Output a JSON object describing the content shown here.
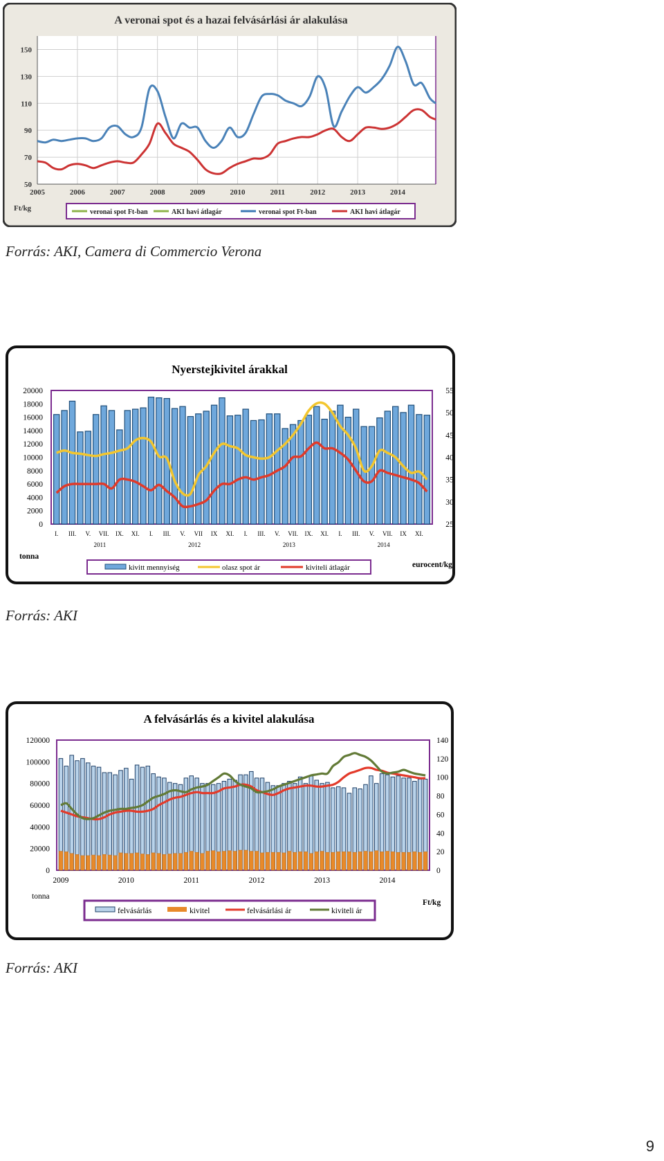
{
  "page_number": "9",
  "sources": [
    "Forrás: AKI, Camera di Commercio Verona",
    "Forrás: AKI",
    "Forrás: AKI"
  ],
  "chart_data": [
    {
      "type": "line",
      "title": "A veronai spot és a hazai felvásárlási ár alakulása",
      "ylabel": "Ft/kg",
      "ylim": [
        50,
        160
      ],
      "yticks": [
        50,
        70,
        90,
        110,
        130,
        150
      ],
      "year_labels": [
        "2005",
        "2006",
        "2007",
        "2008",
        "2009",
        "2010",
        "2011",
        "2012",
        "2013",
        "2014"
      ],
      "x_start": 2005.0,
      "x_end": 2014.95,
      "legend": [
        "veronai spot Ft-ban",
        "AKI havi átlagár",
        "veronai spot Ft-ban",
        "AKI havi átlagár"
      ],
      "legend_colors": [
        "#8db34a",
        "#8db34a",
        "#3b78b5",
        "#cc3333"
      ],
      "series": [
        {
          "name": "veronai spot Ft-ban",
          "color": "#4a82b8",
          "x": [
            2005.0,
            2005.2,
            2005.4,
            2005.6,
            2005.8,
            2006.0,
            2006.2,
            2006.4,
            2006.6,
            2006.8,
            2007.0,
            2007.2,
            2007.4,
            2007.6,
            2007.8,
            2008.0,
            2008.2,
            2008.4,
            2008.6,
            2008.8,
            2009.0,
            2009.2,
            2009.4,
            2009.6,
            2009.8,
            2010.0,
            2010.2,
            2010.4,
            2010.6,
            2010.8,
            2011.0,
            2011.2,
            2011.4,
            2011.6,
            2011.8,
            2012.0,
            2012.2,
            2012.4,
            2012.6,
            2012.8,
            2013.0,
            2013.2,
            2013.4,
            2013.6,
            2013.8,
            2014.0,
            2014.2,
            2014.4,
            2014.6,
            2014.8,
            2014.95
          ],
          "y": [
            82,
            81,
            83,
            82,
            83,
            84,
            84,
            82,
            84,
            92,
            93,
            87,
            85,
            92,
            121,
            119,
            100,
            84,
            95,
            92,
            92,
            82,
            77,
            82,
            92,
            85,
            88,
            102,
            115,
            117,
            116,
            112,
            110,
            108,
            115,
            130,
            121,
            93,
            104,
            115,
            122,
            118,
            122,
            128,
            138,
            152,
            141,
            124,
            125,
            114,
            110
          ]
        },
        {
          "name": "AKI havi átlagár",
          "color": "#cc3333",
          "x": [
            2005.0,
            2005.2,
            2005.4,
            2005.6,
            2005.8,
            2006.0,
            2006.2,
            2006.4,
            2006.6,
            2006.8,
            2007.0,
            2007.2,
            2007.4,
            2007.6,
            2007.8,
            2008.0,
            2008.2,
            2008.4,
            2008.6,
            2008.8,
            2009.0,
            2009.2,
            2009.4,
            2009.6,
            2009.8,
            2010.0,
            2010.2,
            2010.4,
            2010.6,
            2010.8,
            2011.0,
            2011.2,
            2011.4,
            2011.6,
            2011.8,
            2012.0,
            2012.2,
            2012.4,
            2012.6,
            2012.8,
            2013.0,
            2013.2,
            2013.4,
            2013.6,
            2013.8,
            2014.0,
            2014.2,
            2014.4,
            2014.6,
            2014.8,
            2014.95
          ],
          "y": [
            67,
            66,
            62,
            61,
            64,
            65,
            64,
            62,
            64,
            66,
            67,
            66,
            66,
            72,
            80,
            95,
            88,
            80,
            77,
            74,
            68,
            61,
            58,
            58,
            62,
            65,
            67,
            69,
            69,
            72,
            80,
            82,
            84,
            85,
            85,
            87,
            90,
            91,
            85,
            82,
            87,
            92,
            92,
            91,
            92,
            95,
            100,
            105,
            105,
            100,
            98
          ]
        }
      ]
    },
    {
      "type": "bar",
      "title": "Nyerstejkivitel árakkal",
      "ylabel_left": "tonna",
      "ylabel_right": "eurocent/kg",
      "ylim_left": [
        0,
        20000
      ],
      "yticks_left": [
        0,
        2000,
        4000,
        6000,
        8000,
        10000,
        12000,
        14000,
        16000,
        18000,
        20000
      ],
      "ylim_right": [
        25,
        55
      ],
      "yticks_right": [
        25,
        30,
        35,
        40,
        45,
        50,
        55
      ],
      "month_labels": [
        "I.",
        "III.",
        "V.",
        "VII.",
        "IX.",
        "XI.",
        "I.",
        "III.",
        "V.",
        "VII",
        "IX",
        "XI.",
        "I.",
        "III.",
        "V.",
        "VII.",
        "IX.",
        "XI.",
        "I.",
        "III.",
        "V.",
        "VII.",
        "IX",
        "XI."
      ],
      "year_labels": [
        "2011",
        "2012",
        "2013",
        "2014"
      ],
      "legend": [
        "kivitt mennyiség",
        "olasz spot ár",
        "kiviteli átlagár"
      ],
      "bars": {
        "name": "kivitt mennyiség",
        "color": "#6fa8dc",
        "values": [
          16400,
          17000,
          18400,
          13800,
          13900,
          16400,
          17700,
          17000,
          14100,
          17000,
          17200,
          17400,
          19000,
          18900,
          18800,
          17300,
          17600,
          16100,
          16500,
          16900,
          17800,
          18900,
          16200,
          16300,
          17200,
          15500,
          15600,
          16500,
          16500,
          14300,
          14900,
          15500,
          16300,
          17600,
          15700,
          16900,
          17800,
          16000,
          17200,
          14600,
          14600,
          15900,
          16900,
          17600,
          16700,
          17800,
          16400,
          16300
        ]
      },
      "lines": [
        {
          "name": "olasz spot ár",
          "color": "#f3c62e",
          "values": [
            41,
            41.5,
            41,
            40.8,
            40.5,
            40.3,
            40.7,
            41,
            41.5,
            42,
            43.8,
            44.3,
            43.5,
            40.2,
            39.8,
            34.7,
            31.9,
            31.8,
            36,
            38,
            41,
            43,
            42.5,
            42,
            40.5,
            40,
            39.7,
            40,
            41.5,
            43,
            45,
            47.5,
            50.5,
            52.1,
            52,
            50,
            47,
            45,
            42,
            37,
            38,
            41.5,
            41,
            40,
            38,
            36.5,
            36.8,
            35
          ]
        },
        {
          "name": "kiviteli átlagár",
          "color": "#e03a2a",
          "values": [
            32,
            33.5,
            34,
            34,
            34,
            34,
            34,
            33,
            35,
            35,
            34.5,
            33.5,
            32.6,
            33.8,
            32.4,
            31,
            29,
            29,
            29.5,
            30.3,
            32.5,
            34,
            34,
            35,
            35.5,
            35,
            35.5,
            36,
            37,
            38,
            40,
            40.2,
            42,
            43.3,
            42,
            42,
            41,
            39.5,
            37,
            34.6,
            34.6,
            37,
            36.5,
            36,
            35.5,
            35,
            34.2,
            32.3
          ]
        }
      ]
    },
    {
      "type": "bar",
      "title": "A felvásárlás és a kivitel alakulása",
      "ylabel_left": "tonna",
      "ylabel_right": "Ft/kg",
      "ylim_left": [
        0,
        120000
      ],
      "yticks_left": [
        0,
        20000,
        40000,
        60000,
        80000,
        100000,
        120000
      ],
      "ylim_right": [
        0,
        140
      ],
      "yticks_right": [
        0,
        20,
        40,
        60,
        80,
        100,
        120,
        140
      ],
      "year_labels": [
        "2009",
        "2010",
        "2011",
        "2012",
        "2013",
        "2014"
      ],
      "legend": [
        "felvásárlás",
        "kivitel",
        "felvásárlási ár",
        "kiviteli ár"
      ],
      "bars": [
        {
          "name": "felvásárlás",
          "color": "#b9d3ea",
          "values": [
            103000,
            96000,
            106000,
            101000,
            103000,
            99000,
            96000,
            95000,
            90000,
            90000,
            88000,
            92000,
            94000,
            84000,
            97000,
            95000,
            96000,
            89000,
            86000,
            85000,
            81000,
            80000,
            79000,
            85000,
            87000,
            85000,
            80000,
            80000,
            79000,
            80000,
            82000,
            84000,
            83000,
            88000,
            88000,
            91000,
            85000,
            85000,
            81000,
            78000,
            78000,
            80000,
            82000,
            80000,
            86000,
            80000,
            87000,
            83000,
            80000,
            81000,
            76000,
            77000,
            76000,
            71000,
            76000,
            75000,
            79000,
            87000,
            80000,
            89000,
            88000,
            86000,
            87000,
            85000,
            85000,
            82000,
            84000,
            84000
          ]
        },
        {
          "name": "kivitel",
          "color": "#e88a2a",
          "values": [
            17500,
            17000,
            15500,
            14500,
            13500,
            13500,
            14000,
            13500,
            14500,
            14000,
            13500,
            16000,
            15500,
            15500,
            16000,
            15000,
            14500,
            16000,
            15500,
            14500,
            15000,
            15500,
            15500,
            16500,
            17500,
            16500,
            15500,
            17500,
            18000,
            17000,
            17500,
            18000,
            17500,
            18500,
            18500,
            17500,
            17500,
            16000,
            16500,
            16500,
            16500,
            16000,
            17500,
            16500,
            17000,
            17000,
            15500,
            17000,
            17500,
            16500,
            16500,
            17000,
            17000,
            17000,
            16500,
            17000,
            17500,
            17000,
            18000,
            17000,
            17500,
            17000,
            16500,
            16500,
            16500,
            17000,
            16500,
            17000
          ]
        }
      ],
      "lines": [
        {
          "name": "felvásárlási ár",
          "color": "#e33a2a",
          "values": [
            64,
            62,
            60,
            58,
            57,
            56,
            55,
            55,
            57,
            60,
            62,
            63,
            64,
            64,
            63,
            63,
            64,
            66,
            70,
            73,
            76,
            78,
            79,
            81,
            83,
            84,
            83,
            83,
            83,
            85,
            88,
            89,
            90,
            92,
            92,
            90,
            86,
            84,
            82,
            81,
            83,
            86,
            88,
            89,
            90,
            91,
            91,
            90,
            90,
            91,
            92,
            95,
            100,
            104,
            106,
            108,
            110,
            110,
            108,
            107,
            105,
            104,
            103,
            102,
            101,
            100,
            99,
            99
          ]
        },
        {
          "name": "kiviteli ár",
          "color": "#627a36",
          "values": [
            70,
            72,
            66,
            60,
            56,
            55,
            56,
            59,
            62,
            64,
            65,
            66,
            66,
            67,
            68,
            70,
            74,
            78,
            80,
            82,
            85,
            86,
            85,
            84,
            87,
            89,
            90,
            92,
            96,
            100,
            104,
            102,
            96,
            92,
            90,
            88,
            84,
            84,
            85,
            87,
            90,
            92,
            94,
            96,
            98,
            100,
            102,
            103,
            104,
            104,
            112,
            116,
            122,
            124,
            126,
            124,
            122,
            118,
            112,
            106,
            104,
            105,
            106,
            108,
            106,
            104,
            103,
            102
          ]
        }
      ]
    }
  ]
}
